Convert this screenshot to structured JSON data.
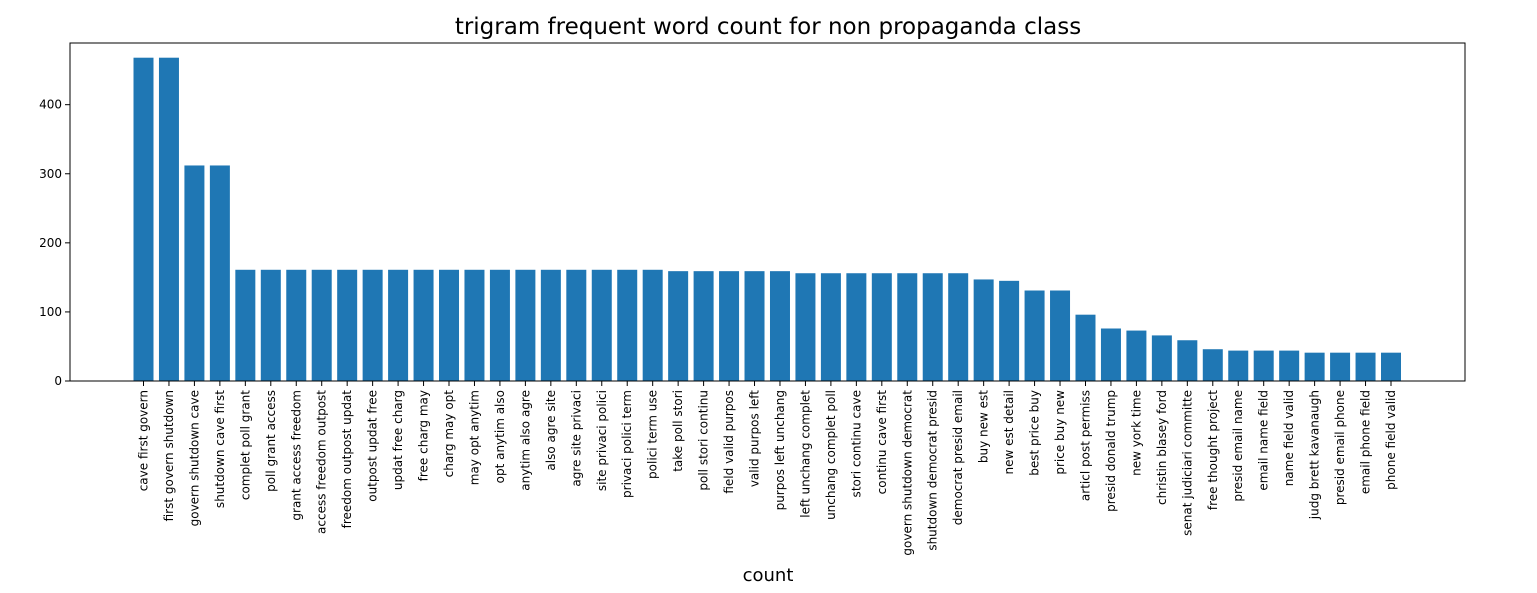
{
  "chart_data": {
    "type": "bar",
    "title": "trigram frequent word count for non propaganda class",
    "xlabel": "count",
    "ylabel": "",
    "ylim": [
      0,
      490
    ],
    "yticks": [
      0,
      100,
      200,
      300,
      400
    ],
    "grid": false,
    "bar_color": "#1f77b4",
    "categories": [
      "cave first govern",
      "first govern shutdown",
      "govern shutdown cave",
      "shutdown cave first",
      "complet poll grant",
      "poll grant access",
      "grant access freedom",
      "access freedom outpost",
      "freedom outpost updat",
      "outpost updat free",
      "updat free charg",
      "free charg may",
      "charg may opt",
      "may opt anytim",
      "opt anytim also",
      "anytim also agre",
      "also agre site",
      "agre site privaci",
      "site privaci polici",
      "privaci polici term",
      "polici term use",
      "take poll stori",
      "poll stori continu",
      "field valid purpos",
      "valid purpos left",
      "purpos left unchang",
      "left unchang complet",
      "unchang complet poll",
      "stori continu cave",
      "continu cave first",
      "govern shutdown democrat",
      "shutdown democrat presid",
      "democrat presid email",
      "buy new est",
      "new est detail",
      "best price buy",
      "price buy new",
      "articl post permiss",
      "presid donald trump",
      "new york time",
      "christin blasey ford",
      "senat judiciari committe",
      "free thought project",
      "presid email name",
      "email name field",
      "name field valid",
      "judg brett kavanaugh",
      "presid email phone",
      "email phone field",
      "phone field valid"
    ],
    "values": [
      468,
      468,
      312,
      312,
      161,
      161,
      161,
      161,
      161,
      161,
      161,
      161,
      161,
      161,
      161,
      161,
      161,
      161,
      161,
      161,
      161,
      159,
      159,
      159,
      159,
      159,
      156,
      156,
      156,
      156,
      156,
      156,
      156,
      147,
      145,
      131,
      131,
      96,
      76,
      73,
      66,
      59,
      46,
      44,
      44,
      44,
      41,
      41,
      41,
      41
    ]
  }
}
